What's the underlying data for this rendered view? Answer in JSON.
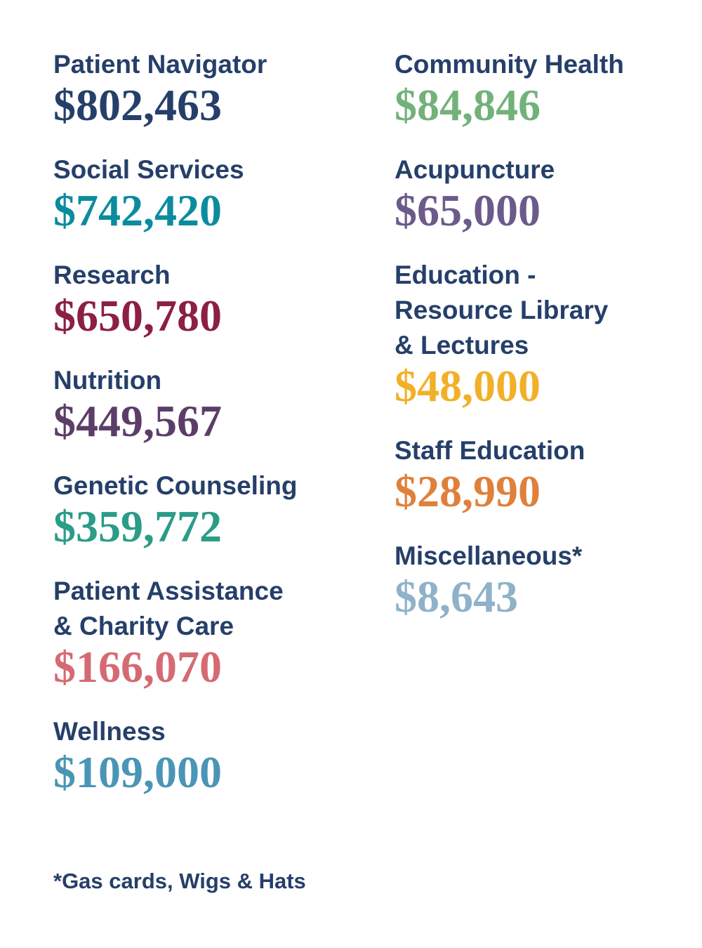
{
  "label_color": "#263f6a",
  "columns": [
    {
      "items": [
        {
          "label_lines": [
            "Patient Navigator"
          ],
          "amount": "$802,463",
          "color": "#263f6a"
        },
        {
          "label_lines": [
            "Social Services"
          ],
          "amount": "$742,420",
          "color": "#0b8c9e"
        },
        {
          "label_lines": [
            "Research"
          ],
          "amount": "$650,780",
          "color": "#8c1f45"
        },
        {
          "label_lines": [
            "Nutrition"
          ],
          "amount": "$449,567",
          "color": "#5b3e68"
        },
        {
          "label_lines": [
            "Genetic Counseling"
          ],
          "amount": "$359,772",
          "color": "#2a9c88"
        },
        {
          "label_lines": [
            "Patient Assistance",
            "& Charity Care"
          ],
          "amount": "$166,070",
          "color": "#d56a73"
        },
        {
          "label_lines": [
            "Wellness"
          ],
          "amount": "$109,000",
          "color": "#4a95b6"
        }
      ]
    },
    {
      "items": [
        {
          "label_lines": [
            "Community Health"
          ],
          "amount": "$84,846",
          "color": "#72b27a"
        },
        {
          "label_lines": [
            "Acupuncture"
          ],
          "amount": "$65,000",
          "color": "#6c5a8b"
        },
        {
          "label_lines": [
            "Education -",
            "Resource Library",
            "& Lectures"
          ],
          "amount": "$48,000",
          "color": "#f2b028"
        },
        {
          "label_lines": [
            "Staff Education"
          ],
          "amount": "$28,990",
          "color": "#e0803b"
        },
        {
          "label_lines": [
            "Miscellaneous*"
          ],
          "amount": "$8,643",
          "color": "#8fb2c9"
        }
      ]
    }
  ],
  "footnote": "*Gas cards, Wigs & Hats"
}
